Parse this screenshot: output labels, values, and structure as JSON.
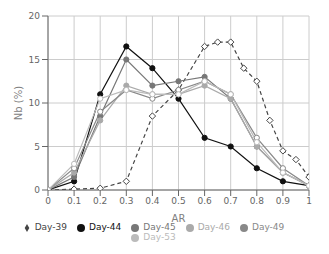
{
  "chart_data": {
    "type": "line",
    "title": "",
    "xlabel": "AR",
    "ylabel": "Nb (%)",
    "xlim": [
      0,
      1
    ],
    "ylim": [
      0,
      20
    ],
    "xticks": [
      0,
      0.1,
      0.2,
      0.3,
      0.4,
      0.5,
      0.6,
      0.7,
      0.8,
      0.9,
      1
    ],
    "yticks": [
      0,
      5,
      10,
      15,
      20
    ],
    "grid": true,
    "legend": "bottom",
    "series": [
      {
        "name": "Day-39",
        "color": "#444444",
        "marker": "open_diamond",
        "line_style": "dashed",
        "x": [
          0.0,
          0.1,
          0.2,
          0.3,
          0.4,
          0.5,
          0.6,
          0.65,
          0.7,
          0.75,
          0.8,
          0.85,
          0.9,
          0.95,
          1.0
        ],
        "values": [
          0.0,
          0.1,
          0.2,
          1.0,
          8.5,
          11.5,
          16.5,
          17.0,
          17.0,
          14.0,
          12.5,
          8.0,
          4.5,
          3.5,
          1.5
        ]
      },
      {
        "name": "Day-44",
        "color": "#111111",
        "marker": "filled_circle",
        "line_style": "solid",
        "x": [
          0.0,
          0.1,
          0.2,
          0.3,
          0.4,
          0.5,
          0.6,
          0.7,
          0.8,
          0.9,
          1.0
        ],
        "values": [
          0.0,
          1.0,
          11.0,
          16.5,
          14.0,
          10.5,
          6.0,
          5.0,
          2.5,
          1.0,
          0.5
        ]
      },
      {
        "name": "Day-45",
        "color": "#777777",
        "marker": "filled_circle",
        "line_style": "solid",
        "x": [
          0.0,
          0.1,
          0.2,
          0.3,
          0.4,
          0.5,
          0.6,
          0.7,
          0.8,
          0.9,
          1.0
        ],
        "values": [
          0.0,
          1.5,
          8.5,
          15.0,
          12.0,
          12.5,
          13.0,
          10.5,
          5.0,
          2.0,
          0.5
        ]
      },
      {
        "name": "Day-46",
        "color": "#aaaaaa",
        "marker": "filled_circle",
        "line_style": "solid",
        "x": [
          0.0,
          0.1,
          0.2,
          0.3,
          0.4,
          0.5,
          0.6,
          0.7,
          0.8,
          0.9,
          1.0
        ],
        "values": [
          0.0,
          2.0,
          8.0,
          12.0,
          11.0,
          11.0,
          12.0,
          10.5,
          5.0,
          2.0,
          0.5
        ]
      },
      {
        "name": "Day-49",
        "color": "#888888",
        "marker": "open_circle",
        "line_style": "solid",
        "x": [
          0.0,
          0.1,
          0.2,
          0.3,
          0.4,
          0.5,
          0.6,
          0.7,
          0.8,
          0.9,
          1.0
        ],
        "values": [
          0.0,
          2.5,
          9.0,
          11.5,
          10.5,
          11.5,
          12.5,
          11.0,
          6.0,
          2.5,
          0.5
        ]
      },
      {
        "name": "Day-53",
        "color": "#bbbbbb",
        "marker": "open_circle",
        "line_style": "solid",
        "x": [
          0.0,
          0.1,
          0.2,
          0.3,
          0.4,
          0.5,
          0.6,
          0.7,
          0.8,
          0.9,
          1.0
        ],
        "values": [
          0.0,
          3.0,
          10.5,
          11.5,
          11.0,
          11.0,
          12.5,
          11.0,
          5.5,
          2.0,
          0.5
        ]
      }
    ]
  }
}
